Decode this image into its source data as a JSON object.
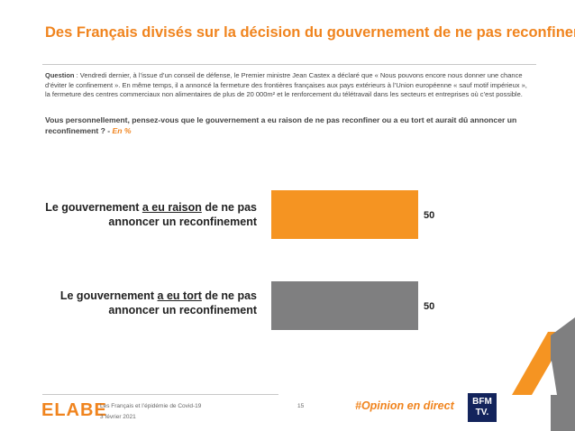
{
  "header": {
    "title": "Des Français divisés sur la décision du gouvernement de ne pas reconfiner"
  },
  "question": {
    "label": "Question",
    "text": " : Vendredi dernier, à l’issue d’un conseil de défense, le Premier ministre Jean Castex a déclaré que « Nous pouvons encore nous donner une chance d’éviter le confinement ». En même temps, il a annoncé la fermeture des frontières françaises aux pays extérieurs à l’Union européenne « sauf motif impérieux », la fermeture des centres commerciaux non alimentaires de plus de 20 000m² et le renforcement du télétravail dans les secteurs et entreprises où c’est possible.",
    "ask": "Vous personnellement, pensez-vous que le gouvernement a eu raison de ne pas reconfiner ou a eu tort et aurait dû annoncer un reconfinement ? - ",
    "unit": "En %"
  },
  "chart_data": {
    "type": "bar",
    "orientation": "horizontal",
    "categories": [
      "Le gouvernement a eu raison de ne pas annoncer un reconfinement",
      "Le gouvernement a eu tort de ne pas annoncer un reconfinement"
    ],
    "category_parts": [
      {
        "pre": "Le gouvernement ",
        "em": "a eu raison",
        "post": " de ne pas annoncer un reconfinement"
      },
      {
        "pre": "Le gouvernement ",
        "em": "a eu tort",
        "post": " de ne pas annoncer un reconfinement"
      }
    ],
    "values": [
      50,
      50
    ],
    "colors": [
      "#f59422",
      "#7f7f80"
    ],
    "xlim": [
      0,
      50
    ],
    "grid": false,
    "legend": "none"
  },
  "footer": {
    "logo": "ELABE",
    "study": "Les Français et l’épidémie de Covid-19",
    "date": "3 février 2021",
    "page": "15",
    "hashtag": "#Opinion en direct",
    "bfm_logo": [
      "BFM",
      "TV."
    ],
    "accent_color": "#f0841e"
  }
}
